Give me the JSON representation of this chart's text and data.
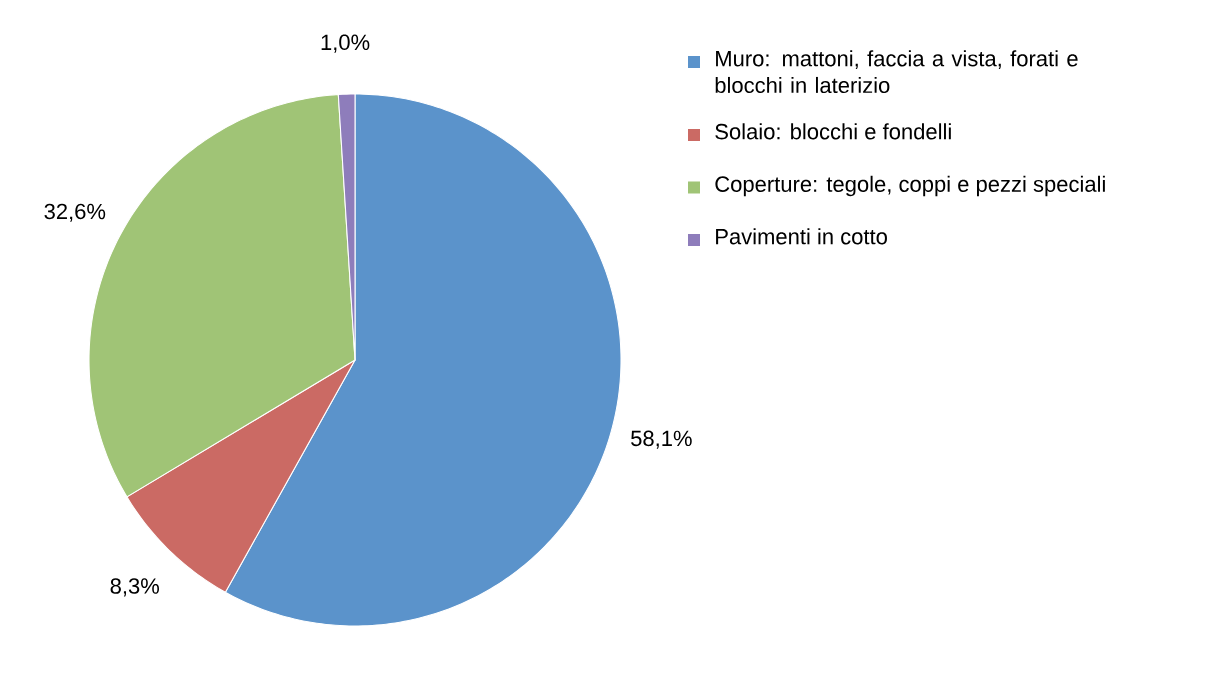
{
  "chart_data": {
    "type": "pie",
    "categories": [
      "Muro: mattoni, faccia a vista, forati e blocchi in laterizio",
      "Solaio: blocchi e fondelli",
      "Coperture: tegole, coppi e pezzi speciali",
      "Pavimenti in cotto"
    ],
    "values": [
      58.1,
      8.3,
      32.6,
      1.0
    ],
    "value_labels": [
      "58,1%",
      "8,3%",
      "32,6%",
      "1,0%"
    ],
    "colors": [
      "#5b93cb",
      "#cb6a64",
      "#a0c476",
      "#8e7dbb"
    ],
    "legend": "top right"
  }
}
